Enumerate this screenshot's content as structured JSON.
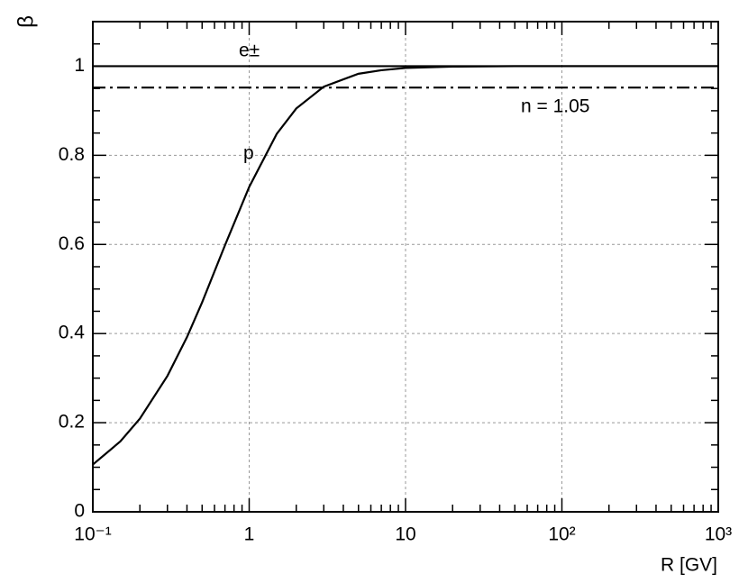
{
  "chart_data": {
    "type": "line",
    "xlabel": "R [GV]",
    "ylabel": "β",
    "xscale": "log",
    "xlim": [
      0.1,
      1000
    ],
    "ylim": [
      0,
      1.1
    ],
    "xticks": [
      {
        "value": 0.1,
        "label": "10⁻¹"
      },
      1,
      10,
      {
        "value": 100,
        "label": "10²"
      },
      {
        "value": 1000,
        "label": "10³"
      }
    ],
    "yticks": [
      0,
      0.2,
      0.4,
      0.6,
      0.8,
      1
    ],
    "grid": true,
    "series": [
      {
        "name": "p",
        "color": "#000000",
        "style": "solid",
        "x": [
          0.1,
          0.15,
          0.2,
          0.3,
          0.4,
          0.5,
          0.7,
          1,
          1.5,
          2,
          3,
          5,
          7,
          10,
          20,
          50,
          100,
          1000
        ],
        "values": [
          0.106,
          0.158,
          0.209,
          0.305,
          0.392,
          0.47,
          0.598,
          0.729,
          0.848,
          0.905,
          0.954,
          0.983,
          0.991,
          0.996,
          0.999,
          1,
          1,
          1
        ]
      },
      {
        "name": "e±",
        "color": "#000000",
        "style": "solid",
        "x": [
          0.1,
          1000
        ],
        "values": [
          1,
          1
        ]
      }
    ],
    "annotations": [
      {
        "text": "n = 1.05",
        "x": [
          0.1,
          1000
        ],
        "values": [
          0.952,
          0.952
        ],
        "style": "dashdot",
        "color": "#000000"
      }
    ]
  }
}
